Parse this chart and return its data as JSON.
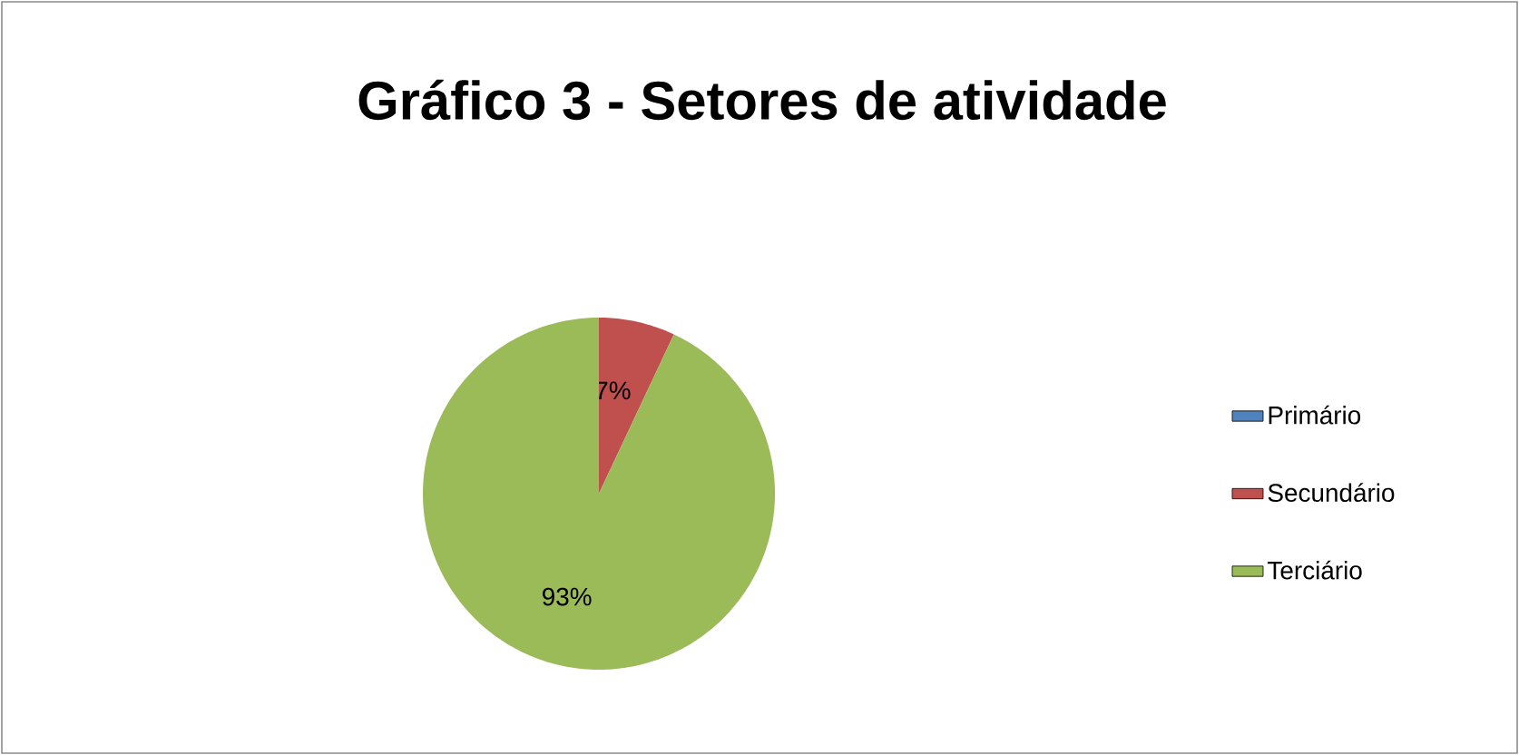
{
  "chart_data": {
    "type": "pie",
    "title": "Gráfico 3 - Setores de atividade",
    "categories": [
      "Primário",
      "Secundário",
      "Terciário"
    ],
    "values": [
      0,
      7,
      93
    ],
    "colors": [
      "#4f81bd",
      "#c0504d",
      "#9bbb59"
    ],
    "value_labels": [
      null,
      "7%",
      "93%"
    ],
    "legend": "right"
  }
}
